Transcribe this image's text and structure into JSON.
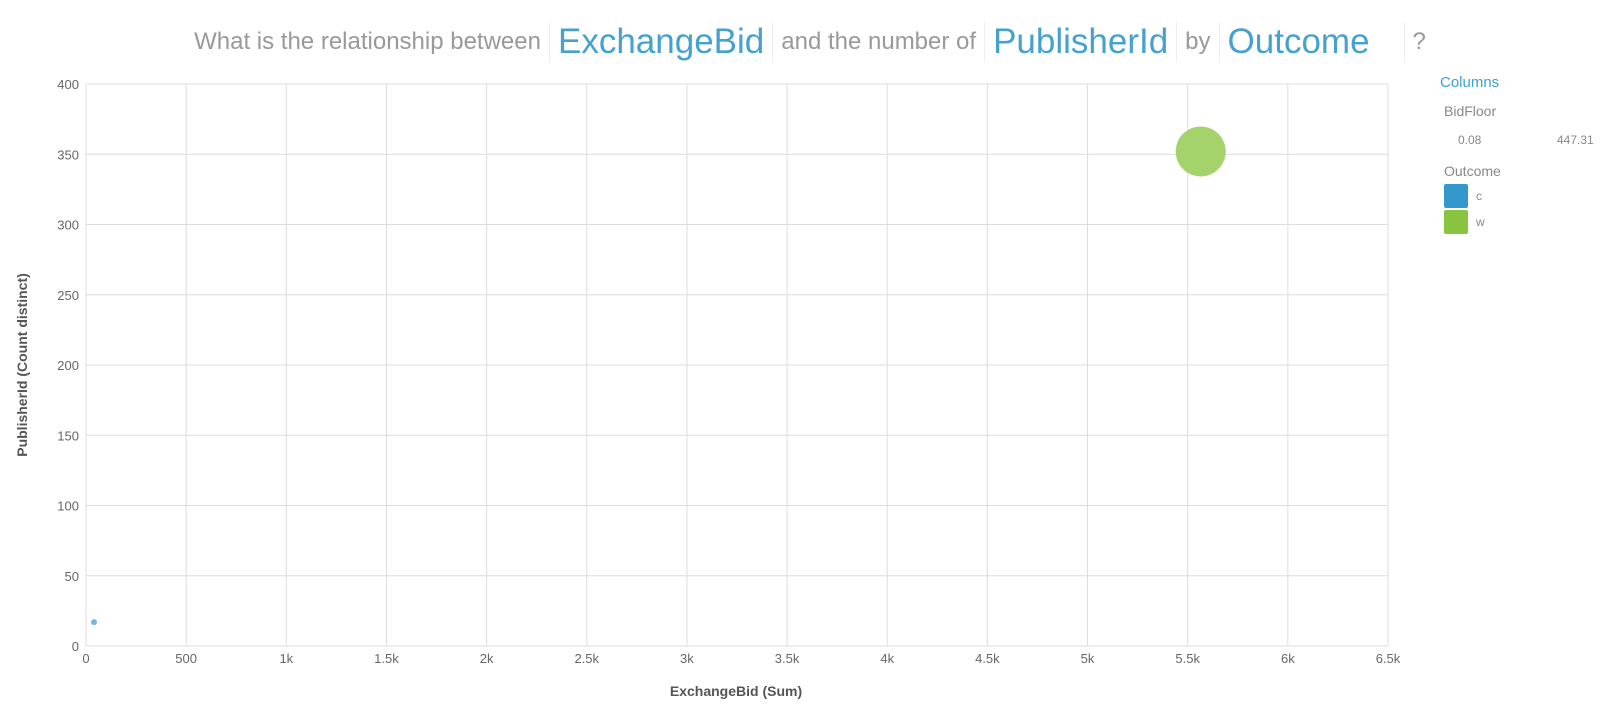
{
  "question": {
    "prefix": "What is the relationship between",
    "field1": "ExchangeBid",
    "middle": "and the number of",
    "field2": "PublisherId",
    "by": "by",
    "field3": "Outcome",
    "suffix": "?"
  },
  "side_panel": {
    "columns_label": "Columns",
    "size_label": "BidFloor",
    "size_min": "0.08",
    "size_max": "447.31",
    "color_label": "Outcome",
    "legend": [
      {
        "label": "c",
        "color": "#3399cc"
      },
      {
        "label": "w",
        "color": "#88c440"
      }
    ]
  },
  "chart_data": {
    "type": "scatter",
    "xlabel": "ExchangeBid (Sum)",
    "ylabel": "PublisherId (Count distinct)",
    "xlim": [
      0,
      6500
    ],
    "ylim": [
      0,
      400
    ],
    "x_ticks": [
      0,
      500,
      1000,
      1500,
      2000,
      2500,
      3000,
      3500,
      4000,
      4500,
      5000,
      5500,
      6000,
      6500
    ],
    "x_tick_labels": [
      "0",
      "500",
      "1k",
      "1.5k",
      "2k",
      "2.5k",
      "3k",
      "3.5k",
      "4k",
      "4.5k",
      "5k",
      "5.5k",
      "6k",
      "6.5k"
    ],
    "y_ticks": [
      0,
      50,
      100,
      150,
      200,
      250,
      300,
      350,
      400
    ],
    "y_tick_labels": [
      "0",
      "50",
      "100",
      "150",
      "200",
      "250",
      "300",
      "350",
      "400"
    ],
    "grid": true,
    "size_range": [
      0.08,
      447.31
    ],
    "points": [
      {
        "outcome": "c",
        "x": 40,
        "y": 17,
        "size": 0.08,
        "color": "#6ab5dd"
      },
      {
        "outcome": "w",
        "x": 5565,
        "y": 352,
        "size": 447.31,
        "color": "#9fd163"
      }
    ]
  }
}
